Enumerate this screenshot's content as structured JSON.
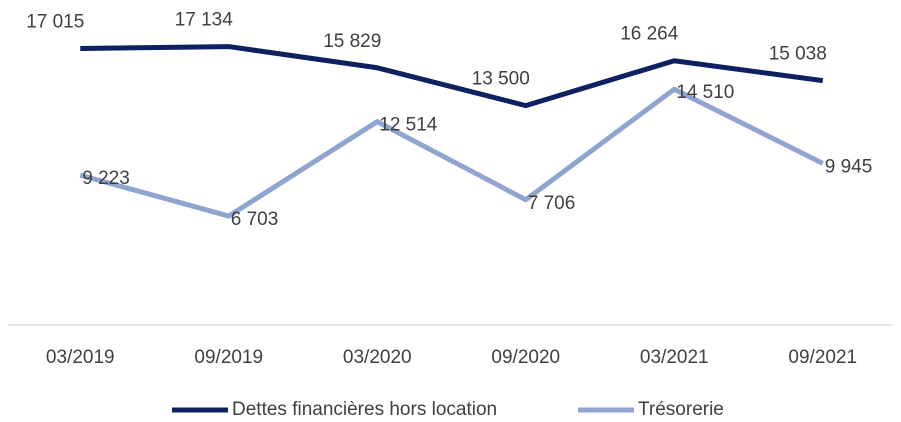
{
  "chart_data": {
    "type": "line",
    "categories": [
      "03/2019",
      "09/2019",
      "03/2020",
      "09/2020",
      "03/2021",
      "09/2021"
    ],
    "series": [
      {
        "name": "Dettes financières hors location",
        "color": "#0d2060",
        "values": [
          17015,
          17134,
          15829,
          13500,
          16264,
          15038
        ],
        "value_labels": [
          "17 015",
          "17 134",
          "15 829",
          "13 500",
          "16 264",
          "15 038"
        ]
      },
      {
        "name": "Trésorerie",
        "color": "#8fa5d0",
        "values": [
          9223,
          6703,
          12514,
          7706,
          14510,
          9945
        ],
        "value_labels": [
          "9 223",
          "6 703",
          "12 514",
          "7 706",
          "14 510",
          "9 945"
        ]
      }
    ],
    "ylim": [
      0,
      20000
    ]
  }
}
